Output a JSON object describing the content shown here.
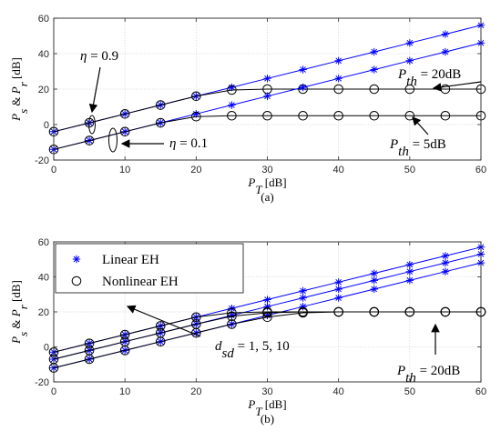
{
  "chart_data": [
    {
      "type": "line",
      "panel_label": "(a)",
      "xlabel_main": "P",
      "xlabel_sub": "T",
      "xlabel_unit": " [dB]",
      "ylabel_text": "P_s & P_r [dB]",
      "xlim": [
        0,
        60
      ],
      "ylim": [
        -20,
        60
      ],
      "xticks": [
        "0",
        "10",
        "20",
        "30",
        "40",
        "50",
        "60"
      ],
      "yticks": [
        "-20",
        "0",
        "20",
        "40",
        "60"
      ],
      "grid": true,
      "x": [
        0,
        5,
        10,
        15,
        20,
        25,
        30,
        35,
        40,
        45,
        50,
        55,
        60
      ],
      "series": [
        {
          "color": "#0000ff",
          "marker": "star",
          "values": [
            -4,
            1,
            6,
            11,
            16,
            21,
            26,
            31,
            36,
            41,
            46,
            51,
            56
          ]
        },
        {
          "color": "#000000",
          "marker": "circle",
          "values": [
            -4,
            1,
            6,
            11,
            16,
            19.5,
            20,
            20,
            20,
            20,
            20,
            20,
            20
          ]
        },
        {
          "color": "#0000ff",
          "marker": "star",
          "values": [
            -14,
            -9,
            -4,
            1,
            6,
            11,
            16,
            21,
            26,
            31,
            36,
            41,
            46
          ]
        },
        {
          "color": "#000000",
          "marker": "circle",
          "values": [
            -14,
            -9,
            -4,
            1,
            4.5,
            5,
            5,
            5,
            5,
            5,
            5,
            5,
            5
          ]
        }
      ],
      "annotations": {
        "eta_high": "η = 0.9",
        "eta_low": "η = 0.1",
        "pth_high": {
          "main": "P",
          "sub": "th",
          "rest": " = 20dB"
        },
        "pth_low": {
          "main": "P",
          "sub": "th",
          "rest": " = 5dB"
        }
      }
    },
    {
      "type": "line",
      "panel_label": "(b)",
      "xlabel_main": "P",
      "xlabel_sub": "T",
      "xlabel_unit": " [dB]",
      "ylabel_text": "P_s & P_r [dB]",
      "xlim": [
        0,
        60
      ],
      "ylim": [
        -20,
        60
      ],
      "xticks": [
        "0",
        "10",
        "20",
        "30",
        "40",
        "50",
        "60"
      ],
      "yticks": [
        "-20",
        "0",
        "20",
        "40",
        "60"
      ],
      "grid": true,
      "legend": [
        "Linear EH",
        "Nonlinear EH"
      ],
      "legend_position": "top-left",
      "x": [
        0,
        5,
        10,
        15,
        20,
        25,
        30,
        35,
        40,
        45,
        50,
        55,
        60
      ],
      "series": [
        {
          "color": "#0000ff",
          "marker": "star",
          "values": [
            -3,
            2,
            7,
            12,
            17,
            22,
            27,
            32,
            37,
            42,
            47,
            52,
            57
          ]
        },
        {
          "color": "#0000ff",
          "marker": "star",
          "values": [
            -7,
            -2,
            3,
            8,
            13,
            18,
            23,
            28,
            33,
            38,
            43,
            48,
            53
          ]
        },
        {
          "color": "#0000ff",
          "marker": "star",
          "values": [
            -12,
            -7,
            -2,
            3,
            8,
            13,
            18,
            23,
            28,
            33,
            38,
            43,
            48
          ]
        },
        {
          "color": "#000000",
          "marker": "circle",
          "values": [
            -3,
            2,
            7,
            12,
            17,
            19.5,
            20,
            20,
            20,
            20,
            20,
            20,
            20
          ]
        },
        {
          "color": "#000000",
          "marker": "circle",
          "values": [
            -7,
            -2,
            3,
            8,
            13,
            17.5,
            19.5,
            20,
            20,
            20,
            20,
            20,
            20
          ]
        },
        {
          "color": "#000000",
          "marker": "circle",
          "values": [
            -12,
            -7,
            -2,
            3,
            8,
            13,
            17,
            19.5,
            20,
            20,
            20,
            20,
            20
          ]
        }
      ],
      "annotations": {
        "dsd": {
          "main": "d",
          "sub": "sd",
          "rest": " = 1, 5, 10"
        },
        "pth": {
          "main": "P",
          "sub": "th",
          "rest": " = 20dB"
        }
      }
    }
  ]
}
